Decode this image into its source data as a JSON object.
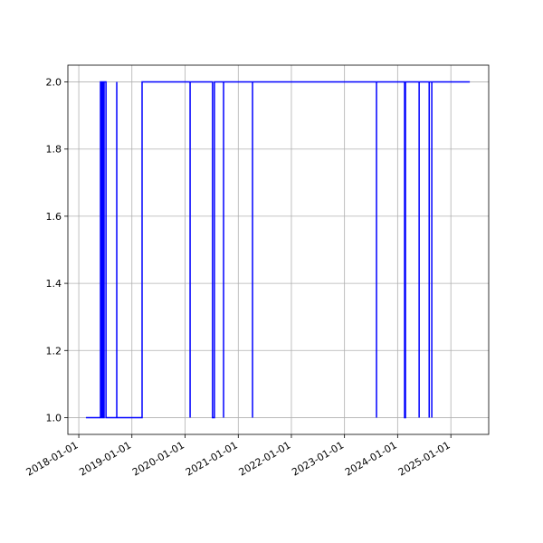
{
  "chart_data": {
    "type": "line",
    "x": [
      "2018-02-19",
      "2018-05-30",
      "2018-05-30",
      "2018-06-05",
      "2018-06-05",
      "2018-06-12",
      "2018-06-12",
      "2018-06-18",
      "2018-06-18",
      "2018-06-24",
      "2018-06-24",
      "2018-07-07",
      "2018-07-07",
      "2018-09-19",
      "2018-09-19",
      "2018-09-19",
      "2019-03-12",
      "2019-03-12",
      "2020-02-05",
      "2020-02-05",
      "2020-02-05",
      "2020-07-08",
      "2020-07-08",
      "2020-07-21",
      "2020-07-21",
      "2020-09-22",
      "2020-09-22",
      "2020-09-22",
      "2021-04-09",
      "2021-04-09",
      "2021-04-09",
      "2023-08-09",
      "2023-08-09",
      "2023-08-09",
      "2024-02-18",
      "2024-02-18",
      "2024-02-24",
      "2024-02-24",
      "2024-05-28",
      "2024-05-28",
      "2024-05-28",
      "2024-08-05",
      "2024-08-05",
      "2024-08-05",
      "2024-08-23",
      "2024-08-23",
      "2024-08-23",
      "2025-05-11"
    ],
    "series": [
      {
        "color": "#0000ff",
        "values": [
          1,
          1,
          2,
          2,
          1,
          1,
          2,
          2,
          1,
          1,
          2,
          2,
          1,
          1,
          2,
          1,
          1,
          2,
          2,
          1,
          2,
          2,
          1,
          1,
          2,
          2,
          1,
          2,
          2,
          1,
          2,
          2,
          1,
          2,
          2,
          1,
          1,
          2,
          2,
          1,
          2,
          2,
          1,
          2,
          2,
          1,
          2,
          2
        ]
      }
    ],
    "xlim": [
      "2017-10-18",
      "2025-09-18"
    ],
    "xticks": [
      "2018-01-01",
      "2019-01-01",
      "2020-01-01",
      "2021-01-01",
      "2022-01-01",
      "2023-01-01",
      "2024-01-01",
      "2025-01-01"
    ],
    "ylim": [
      0.95,
      2.05
    ],
    "yticks": [
      {
        "value": 1,
        "label": "1.0"
      },
      {
        "value": 1.2,
        "label": "1.2"
      },
      {
        "value": 1.4,
        "label": "1.4"
      },
      {
        "value": 1.6,
        "label": "1.6"
      },
      {
        "value": 1.8,
        "label": "1.8"
      },
      {
        "value": 2,
        "label": "2.0"
      }
    ],
    "grid": true
  }
}
